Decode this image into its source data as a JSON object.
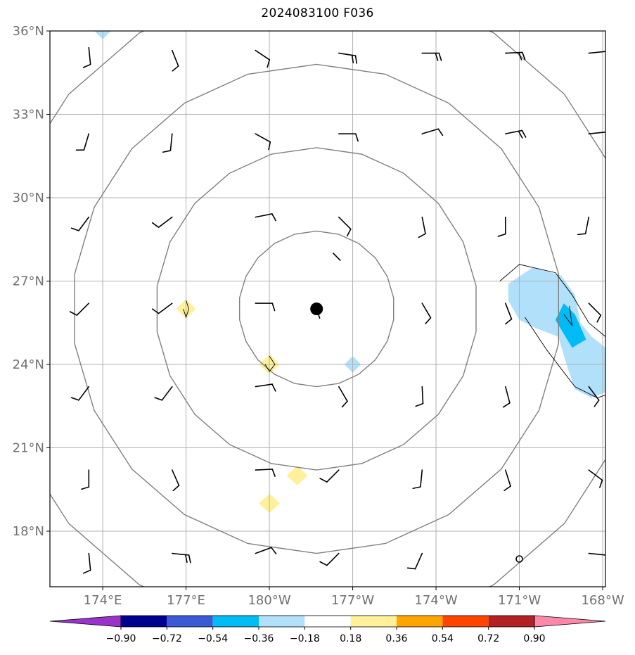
{
  "title": "2024083100 F036",
  "chart_data": {
    "type": "map",
    "title": "2024083100 F036",
    "lon_range": [
      172.1,
      192.1
    ],
    "lat_range": [
      16.0,
      36.0
    ],
    "y_ticks": [
      {
        "lat": 36,
        "label": "36°N"
      },
      {
        "lat": 33,
        "label": "33°N"
      },
      {
        "lat": 30,
        "label": "30°N"
      },
      {
        "lat": 27,
        "label": "27°N"
      },
      {
        "lat": 24,
        "label": "24°N"
      },
      {
        "lat": 21,
        "label": "21°N"
      },
      {
        "lat": 18,
        "label": "18°N"
      }
    ],
    "x_ticks": [
      {
        "lon": 174,
        "label": "174°E"
      },
      {
        "lon": 177,
        "label": "177°E"
      },
      {
        "lon": 180,
        "label": "180°W"
      },
      {
        "lon": 183,
        "label": "177°W"
      },
      {
        "lon": 186,
        "label": "174°W"
      },
      {
        "lon": 189,
        "label": "171°W"
      },
      {
        "lon": 192,
        "label": "168°W"
      }
    ],
    "grid": true,
    "center": {
      "lon": 181.7,
      "lat": 26.0
    },
    "range_rings_deg": [
      2.8,
      5.8,
      8.8,
      11.8
    ],
    "shading_colors": {
      "weak_negative": "#b0e0fa",
      "moderate_negative": "#00bbf5",
      "weak_positive": "#fff09a"
    },
    "shaded_regions": [
      {
        "level": "weak_negative",
        "points": [
          [
            188.6,
            26.9
          ],
          [
            189.5,
            27.5
          ],
          [
            190.5,
            27.2
          ],
          [
            191.0,
            26.5
          ],
          [
            191.2,
            25.5
          ],
          [
            191.6,
            25.0
          ],
          [
            192.1,
            24.6
          ],
          [
            192.1,
            23.0
          ],
          [
            191.6,
            22.8
          ],
          [
            191.0,
            23.1
          ],
          [
            190.7,
            24.0
          ],
          [
            190.4,
            25.0
          ],
          [
            189.6,
            25.3
          ],
          [
            189.0,
            25.6
          ],
          [
            188.6,
            26.3
          ]
        ]
      },
      {
        "level": "moderate_negative",
        "points": [
          [
            190.6,
            26.2
          ],
          [
            191.0,
            25.8
          ],
          [
            191.4,
            24.9
          ],
          [
            190.9,
            24.6
          ],
          [
            190.3,
            25.6
          ]
        ]
      },
      {
        "level": "weak_negative",
        "points": [
          [
            173.7,
            36.0
          ],
          [
            174.0,
            35.7
          ],
          [
            174.3,
            36.0
          ]
        ]
      },
      {
        "level": "weak_negative",
        "points": [
          [
            183.0,
            24.3
          ],
          [
            183.3,
            24.0
          ],
          [
            183.0,
            23.7
          ],
          [
            182.7,
            24.0
          ]
        ]
      },
      {
        "level": "weak_positive",
        "points": [
          [
            177.0,
            26.35
          ],
          [
            177.35,
            26.0
          ],
          [
            177.0,
            25.65
          ],
          [
            176.65,
            26.0
          ]
        ]
      },
      {
        "level": "weak_positive",
        "points": [
          [
            180.0,
            24.35
          ],
          [
            180.38,
            24.0
          ],
          [
            180.0,
            23.65
          ],
          [
            179.62,
            24.0
          ]
        ]
      },
      {
        "level": "weak_positive",
        "points": [
          [
            181.0,
            20.35
          ],
          [
            181.38,
            20.0
          ],
          [
            181.0,
            19.65
          ],
          [
            180.62,
            20.0
          ]
        ]
      },
      {
        "level": "weak_positive",
        "points": [
          [
            180.0,
            19.35
          ],
          [
            180.38,
            19.0
          ],
          [
            180.0,
            18.65
          ],
          [
            179.62,
            19.0
          ]
        ]
      }
    ],
    "contour_outlines": [
      [
        [
          188.3,
          27.0
        ],
        [
          189.0,
          27.6
        ],
        [
          190.3,
          27.3
        ],
        [
          190.9,
          26.5
        ],
        [
          191.5,
          25.5
        ],
        [
          192.1,
          25.0
        ],
        [
          192.1,
          22.9
        ],
        [
          191.8,
          22.8
        ],
        [
          191.0,
          23.2
        ],
        [
          190.0,
          24.5
        ],
        [
          189.2,
          25.7
        ]
      ],
      [
        [
          190.6,
          25.8
        ],
        [
          190.9,
          25.4
        ],
        [
          190.8,
          26.1
        ]
      ],
      [
        [
          180.0,
          24.3
        ],
        [
          180.2,
          24.0
        ],
        [
          180.0,
          23.75
        ],
        [
          179.85,
          24.0
        ]
      ],
      [
        [
          177.0,
          26.3
        ],
        [
          177.1,
          26.0
        ],
        [
          177.0,
          25.7
        ],
        [
          176.9,
          26.0
        ]
      ]
    ],
    "station_circle": {
      "lon": 189.0,
      "lat": 17.0
    },
    "wind_barbs": [
      {
        "lon": 173.5,
        "lat": 35.4,
        "u": 0.1,
        "v": -1,
        "barbs": 1
      },
      {
        "lon": 176.5,
        "lat": 35.3,
        "u": 0.4,
        "v": -1,
        "barbs": 1
      },
      {
        "lon": 179.5,
        "lat": 35.3,
        "u": 0.9,
        "v": -0.6,
        "barbs": 1
      },
      {
        "lon": 182.5,
        "lat": 35.2,
        "u": 1,
        "v": -0.15,
        "barbs": 2
      },
      {
        "lon": 185.5,
        "lat": 35.2,
        "u": 1,
        "v": 0,
        "barbs": 2
      },
      {
        "lon": 188.5,
        "lat": 35.2,
        "u": 1,
        "v": 0.05,
        "barbs": 2
      },
      {
        "lon": 191.5,
        "lat": 35.2,
        "u": 1,
        "v": 0.1,
        "barbs": 1
      },
      {
        "lon": 173.5,
        "lat": 32.3,
        "u": -0.3,
        "v": -1,
        "barbs": 1
      },
      {
        "lon": 176.5,
        "lat": 32.3,
        "u": -0.1,
        "v": -1,
        "barbs": 1
      },
      {
        "lon": 179.5,
        "lat": 32.3,
        "u": 0.9,
        "v": -0.5,
        "barbs": 1
      },
      {
        "lon": 182.5,
        "lat": 32.3,
        "u": 1,
        "v": 0,
        "barbs": 1
      },
      {
        "lon": 185.5,
        "lat": 32.3,
        "u": 1,
        "v": 0.3,
        "barbs": 1
      },
      {
        "lon": 188.5,
        "lat": 32.3,
        "u": 1,
        "v": 0.2,
        "barbs": 2
      },
      {
        "lon": 191.5,
        "lat": 32.3,
        "u": 1,
        "v": 0.1,
        "barbs": 1
      },
      {
        "lon": 173.5,
        "lat": 29.3,
        "u": -0.6,
        "v": -0.8,
        "barbs": 1
      },
      {
        "lon": 176.5,
        "lat": 29.3,
        "u": -0.8,
        "v": -0.6,
        "barbs": 1
      },
      {
        "lon": 179.5,
        "lat": 29.3,
        "u": 1,
        "v": 0.2,
        "barbs": 1
      },
      {
        "lon": 182.5,
        "lat": 29.3,
        "u": 0.7,
        "v": -0.7,
        "barbs": 1
      },
      {
        "lon": 185.5,
        "lat": 29.3,
        "u": 0.2,
        "v": -1,
        "barbs": 1
      },
      {
        "lon": 188.5,
        "lat": 29.3,
        "u": 0,
        "v": -1,
        "barbs": 1
      },
      {
        "lon": 191.5,
        "lat": 29.3,
        "u": -0.2,
        "v": -1,
        "barbs": 1
      },
      {
        "lon": 173.5,
        "lat": 26.2,
        "u": -0.7,
        "v": -0.7,
        "barbs": 1
      },
      {
        "lon": 176.5,
        "lat": 26.2,
        "u": -0.8,
        "v": -0.6,
        "barbs": 1
      },
      {
        "lon": 179.5,
        "lat": 26.2,
        "u": 0.8,
        "v": 0,
        "barbs": 1
      },
      {
        "lon": 185.5,
        "lat": 26.2,
        "u": 0.5,
        "v": -0.85,
        "barbs": 1
      },
      {
        "lon": 188.5,
        "lat": 26.2,
        "u": 0.35,
        "v": -0.9,
        "barbs": 1
      },
      {
        "lon": 191.5,
        "lat": 26.2,
        "u": 0.7,
        "v": -0.7,
        "barbs": 1
      },
      {
        "lon": 173.5,
        "lat": 23.2,
        "u": -0.6,
        "v": -0.8,
        "barbs": 1
      },
      {
        "lon": 176.5,
        "lat": 23.2,
        "u": -0.6,
        "v": -0.8,
        "barbs": 1
      },
      {
        "lon": 179.5,
        "lat": 23.2,
        "u": 1,
        "v": 0.15,
        "barbs": 1
      },
      {
        "lon": 182.5,
        "lat": 23.2,
        "u": 0.5,
        "v": -0.85,
        "barbs": 1
      },
      {
        "lon": 185.5,
        "lat": 23.2,
        "u": 0.05,
        "v": -1,
        "barbs": 1
      },
      {
        "lon": 188.5,
        "lat": 23.2,
        "u": 0.25,
        "v": -0.95,
        "barbs": 1
      },
      {
        "lon": 191.5,
        "lat": 23.2,
        "u": 0.6,
        "v": -0.8,
        "barbs": 1
      },
      {
        "lon": 173.5,
        "lat": 20.2,
        "u": 0,
        "v": -1,
        "barbs": 1
      },
      {
        "lon": 176.5,
        "lat": 20.2,
        "u": 0.4,
        "v": -0.9,
        "barbs": 1
      },
      {
        "lon": 179.5,
        "lat": 20.2,
        "u": 1,
        "v": 0.05,
        "barbs": 1
      },
      {
        "lon": 182.5,
        "lat": 20.2,
        "u": -0.7,
        "v": -0.7,
        "barbs": 1
      },
      {
        "lon": 185.5,
        "lat": 20.2,
        "u": -0.1,
        "v": -1,
        "barbs": 1
      },
      {
        "lon": 188.5,
        "lat": 20.2,
        "u": 0.3,
        "v": -0.95,
        "barbs": 1
      },
      {
        "lon": 191.5,
        "lat": 20.2,
        "u": 0.8,
        "v": -0.6,
        "barbs": 1
      },
      {
        "lon": 173.5,
        "lat": 17.2,
        "u": 0.1,
        "v": -1,
        "barbs": 1
      },
      {
        "lon": 176.5,
        "lat": 17.2,
        "u": 1,
        "v": -0.1,
        "barbs": 2
      },
      {
        "lon": 179.5,
        "lat": 17.2,
        "u": 0.95,
        "v": 0.35,
        "barbs": 1
      },
      {
        "lon": 182.5,
        "lat": 17.2,
        "u": -0.7,
        "v": -0.7,
        "barbs": 1
      },
      {
        "lon": 185.5,
        "lat": 17.2,
        "u": -0.4,
        "v": -0.9,
        "barbs": 1
      },
      {
        "lon": 191.5,
        "lat": 17.2,
        "u": 1,
        "v": -0.1,
        "barbs": 1
      }
    ],
    "short_barbs": [
      {
        "lon": 181.7,
        "lat": 26.0,
        "u": 0.3,
        "v": -0.9
      },
      {
        "lon": 182.3,
        "lat": 28.0,
        "u": 0.05,
        "v": -0.05
      }
    ],
    "colorbar": {
      "colors": [
        "#9933cc",
        "#000090",
        "#3b5bd5",
        "#00bbf5",
        "#b0e0fa",
        "#ffffff",
        "#fff09a",
        "#ffa500",
        "#ff4500",
        "#b22222",
        "#ff88aa"
      ],
      "labels": [
        "−0.90",
        "−0.72",
        "−0.54",
        "−0.36",
        "−0.18",
        "0.18",
        "0.36",
        "0.54",
        "0.72",
        "0.90"
      ]
    }
  }
}
